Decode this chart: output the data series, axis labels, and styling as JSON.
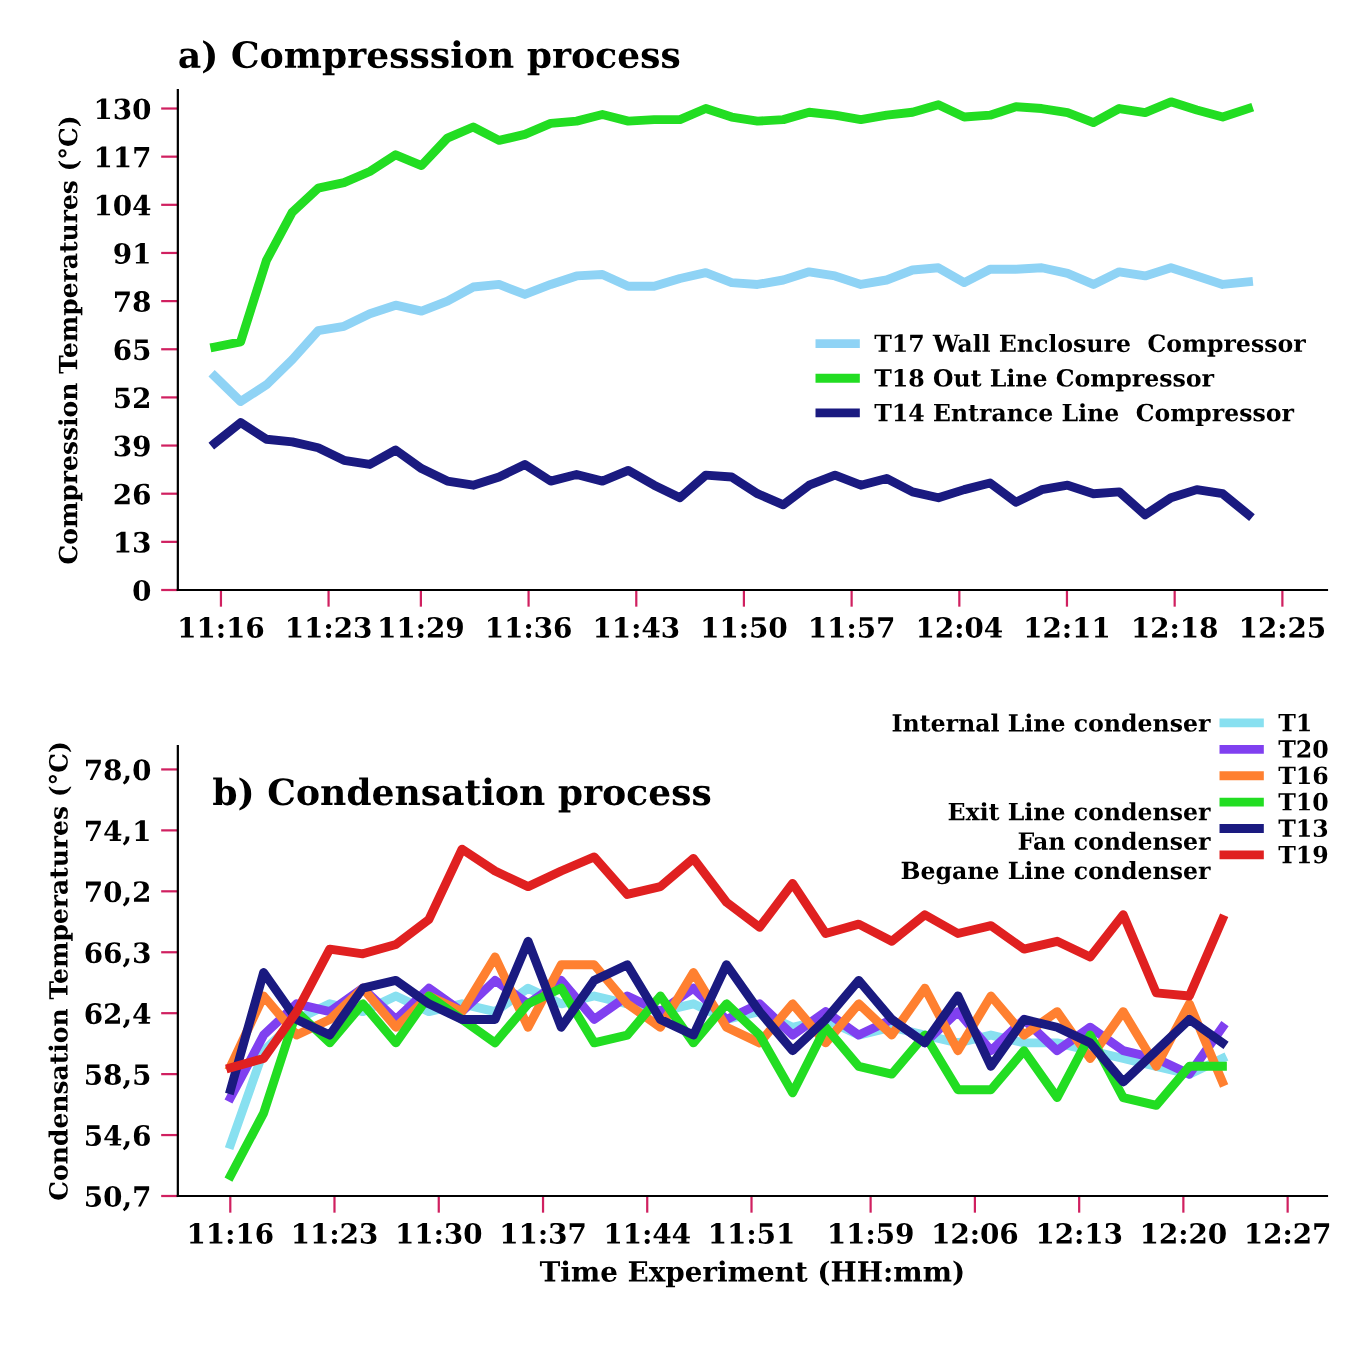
{
  "chart_data": [
    {
      "type": "line",
      "title": "a) Compresssion process",
      "ylabel": "Compression Temperatures (°C)",
      "legend": "right",
      "line_style": "solid",
      "grid": false,
      "x": [
        11.26,
        11.288,
        11.316,
        11.344,
        11.372,
        11.4,
        11.428,
        11.456,
        11.484,
        11.512,
        11.54,
        11.568,
        11.596,
        11.624,
        11.652,
        11.68,
        11.708,
        11.736,
        11.764,
        11.792,
        11.82,
        11.848,
        11.876,
        11.904,
        11.932,
        11.96,
        11.988,
        12.016,
        12.044,
        12.072,
        12.1,
        12.128,
        12.156,
        12.184,
        12.212,
        12.24,
        12.268,
        12.296,
        12.324,
        12.352,
        12.38
      ],
      "xlim": [
        11.22,
        12.465
      ],
      "ylim": [
        0,
        135
      ],
      "xticks": [
        {
          "value": 11.2667,
          "label": "11:16"
        },
        {
          "value": 11.3833,
          "label": "11:23"
        },
        {
          "value": 11.4833,
          "label": "11:29"
        },
        {
          "value": 11.6,
          "label": "11:36"
        },
        {
          "value": 11.7167,
          "label": "11:43"
        },
        {
          "value": 11.8333,
          "label": "11:50"
        },
        {
          "value": 11.95,
          "label": "11:57"
        },
        {
          "value": 12.0667,
          "label": "12:04"
        },
        {
          "value": 12.1833,
          "label": "12:11"
        },
        {
          "value": 12.3,
          "label": "12:18"
        },
        {
          "value": 12.4167,
          "label": "12:25"
        }
      ],
      "yticks": [
        0,
        13,
        26,
        39,
        52,
        65,
        78,
        91,
        104,
        117,
        130
      ],
      "series": [
        {
          "name": "T17 Wall Enclosure  Compressor",
          "color": "#8fd3f5",
          "values": [
            57.7,
            50.9,
            55.4,
            62.2,
            70,
            71.2,
            74.6,
            76.9,
            75.3,
            78,
            81.8,
            82.5,
            79.8,
            82.5,
            84.8,
            85.2,
            82,
            82,
            84.1,
            85.7,
            83,
            82.5,
            83.7,
            85.9,
            84.8,
            82.5,
            83.7,
            86.4,
            87,
            83,
            86.6,
            86.6,
            87,
            85.5,
            82.5,
            85.9,
            84.8,
            87,
            84.8,
            82.5,
            83.2
          ]
        },
        {
          "name": "T18 Out Line Compressor",
          "color": "#22dd22",
          "values": [
            65.6,
            67,
            89,
            102,
            108.5,
            110,
            113,
            117.5,
            114.6,
            122,
            125,
            121.4,
            123,
            126,
            126.6,
            128.4,
            126.6,
            127,
            127,
            130,
            127.7,
            126.6,
            127,
            129,
            128.2,
            127,
            128.2,
            129,
            131,
            127.7,
            128.2,
            130.5,
            130,
            128.9,
            126.2,
            130,
            128.9,
            131.8,
            129.6,
            127.7,
            130
          ]
        },
        {
          "name": "T14 Entrance Line  Compressor",
          "color": "#1a1a80",
          "values": [
            39.6,
            45.2,
            40.7,
            40,
            38.4,
            35,
            33.9,
            37.8,
            32.8,
            29.4,
            28.3,
            30.5,
            33.9,
            29.4,
            31.2,
            29.4,
            32.3,
            28.3,
            24.9,
            31,
            30.5,
            26,
            23,
            28.3,
            31,
            28.3,
            30.1,
            26.5,
            24.9,
            27.1,
            28.9,
            23.7,
            27.1,
            28.3,
            26,
            26.5,
            20.3,
            24.9,
            27.1,
            26,
            20.3
          ]
        }
      ]
    },
    {
      "type": "line",
      "title": "b) Condensation process",
      "ylabel": "Condensation Temperatures (°C)",
      "xlabel": "Time Experiment (HH:mm)",
      "legend": "top right",
      "line_style": "solid",
      "grid": false,
      "annotations": [
        "Internal Line condenser",
        "Exit Line condenser",
        "Fan condenser",
        "Begane Line condenser"
      ],
      "x": [
        11.267,
        11.304,
        11.341,
        11.378,
        11.415,
        11.452,
        11.489,
        11.526,
        11.563,
        11.6,
        11.637,
        11.674,
        11.711,
        11.748,
        11.785,
        11.822,
        11.859,
        11.896,
        11.933,
        11.97,
        12.007,
        12.044,
        12.081,
        12.118,
        12.155,
        12.192,
        12.229,
        12.266,
        12.303,
        12.34,
        12.377
      ],
      "xlim": [
        11.208,
        12.494
      ],
      "ylim": [
        50.7,
        79.5
      ],
      "xticks": [
        {
          "value": 11.2667,
          "label": "11:16"
        },
        {
          "value": 11.3833,
          "label": "11:23"
        },
        {
          "value": 11.5,
          "label": "11:30"
        },
        {
          "value": 11.6167,
          "label": "11:37"
        },
        {
          "value": 11.7333,
          "label": "11:44"
        },
        {
          "value": 11.85,
          "label": "11:51"
        },
        {
          "value": 11.9833,
          "label": "11:59"
        },
        {
          "value": 12.1,
          "label": "12:06"
        },
        {
          "value": 12.2167,
          "label": "12:13"
        },
        {
          "value": 12.3333,
          "label": "12:20"
        },
        {
          "value": 12.45,
          "label": "12:27"
        }
      ],
      "yticks": [
        {
          "value": 50.7,
          "label": "50,7"
        },
        {
          "value": 54.6,
          "label": "54,6"
        },
        {
          "value": 58.5,
          "label": "58,5"
        },
        {
          "value": 62.4,
          "label": "62,4"
        },
        {
          "value": 66.3,
          "label": "66,3"
        },
        {
          "value": 70.2,
          "label": "70,2"
        },
        {
          "value": 74.1,
          "label": "74,1"
        },
        {
          "value": 78.0,
          "label": "78,0"
        }
      ],
      "series": [
        {
          "name": "T1",
          "color": "#88e0f0",
          "values": [
            54,
            60,
            62,
            63,
            62.5,
            63.5,
            62.5,
            63,
            62.5,
            64,
            63,
            63.5,
            63,
            62.5,
            63,
            62,
            62.5,
            61.5,
            62,
            61,
            61.5,
            61,
            60.5,
            61,
            60.5,
            60.5,
            60,
            59.5,
            59,
            58.5,
            59.5
          ]
        },
        {
          "name": "T20",
          "color": "#8040f0",
          "values": [
            57,
            61,
            63,
            62.5,
            64,
            62,
            64,
            62.5,
            64.5,
            63,
            64.5,
            62,
            63.5,
            62.5,
            64,
            62,
            63,
            61,
            62.5,
            61,
            62,
            60.5,
            62.5,
            60,
            62,
            60,
            61.5,
            60,
            59.5,
            58.5,
            61.5
          ]
        },
        {
          "name": "T16",
          "color": "#ff8030",
          "values": [
            59,
            63.5,
            61,
            62,
            64,
            61.5,
            63.5,
            62.5,
            66,
            61.5,
            65.5,
            65.5,
            63,
            61.5,
            65,
            61.5,
            60.5,
            63,
            60.5,
            63,
            61,
            64,
            60,
            63.5,
            61,
            62.5,
            59.5,
            62.5,
            59,
            63,
            58
          ]
        },
        {
          "name": "T10",
          "color": "#22dd22",
          "values": [
            52,
            56,
            62.5,
            60.5,
            63,
            60.5,
            63.5,
            62,
            60.5,
            63,
            64,
            60.5,
            61,
            63.5,
            60.5,
            63,
            61,
            57.3,
            61.5,
            59,
            58.5,
            61,
            57.5,
            57.5,
            60,
            57,
            61,
            57,
            56.5,
            59,
            59
          ]
        },
        {
          "name": "T13",
          "color": "#1a1a80",
          "values": [
            57.5,
            65,
            62,
            61,
            64,
            64.5,
            63,
            62,
            62,
            67,
            61.5,
            64.5,
            65.5,
            62,
            61,
            65.5,
            62.5,
            60,
            62,
            64.5,
            62,
            60.5,
            63.5,
            59,
            62,
            61.5,
            60.5,
            58,
            60,
            62,
            60.5
          ]
        },
        {
          "name": "T19",
          "color": "#e02020",
          "values": [
            58.9,
            59.5,
            62.5,
            66.5,
            66.2,
            66.8,
            68.4,
            72.9,
            71.5,
            70.5,
            71.5,
            72.4,
            70,
            70.5,
            72.3,
            69.5,
            67.9,
            70.7,
            67.5,
            68.1,
            67,
            68.7,
            67.5,
            68,
            66.5,
            67,
            66,
            68.7,
            63.7,
            63.5,
            68.4
          ]
        }
      ]
    }
  ]
}
